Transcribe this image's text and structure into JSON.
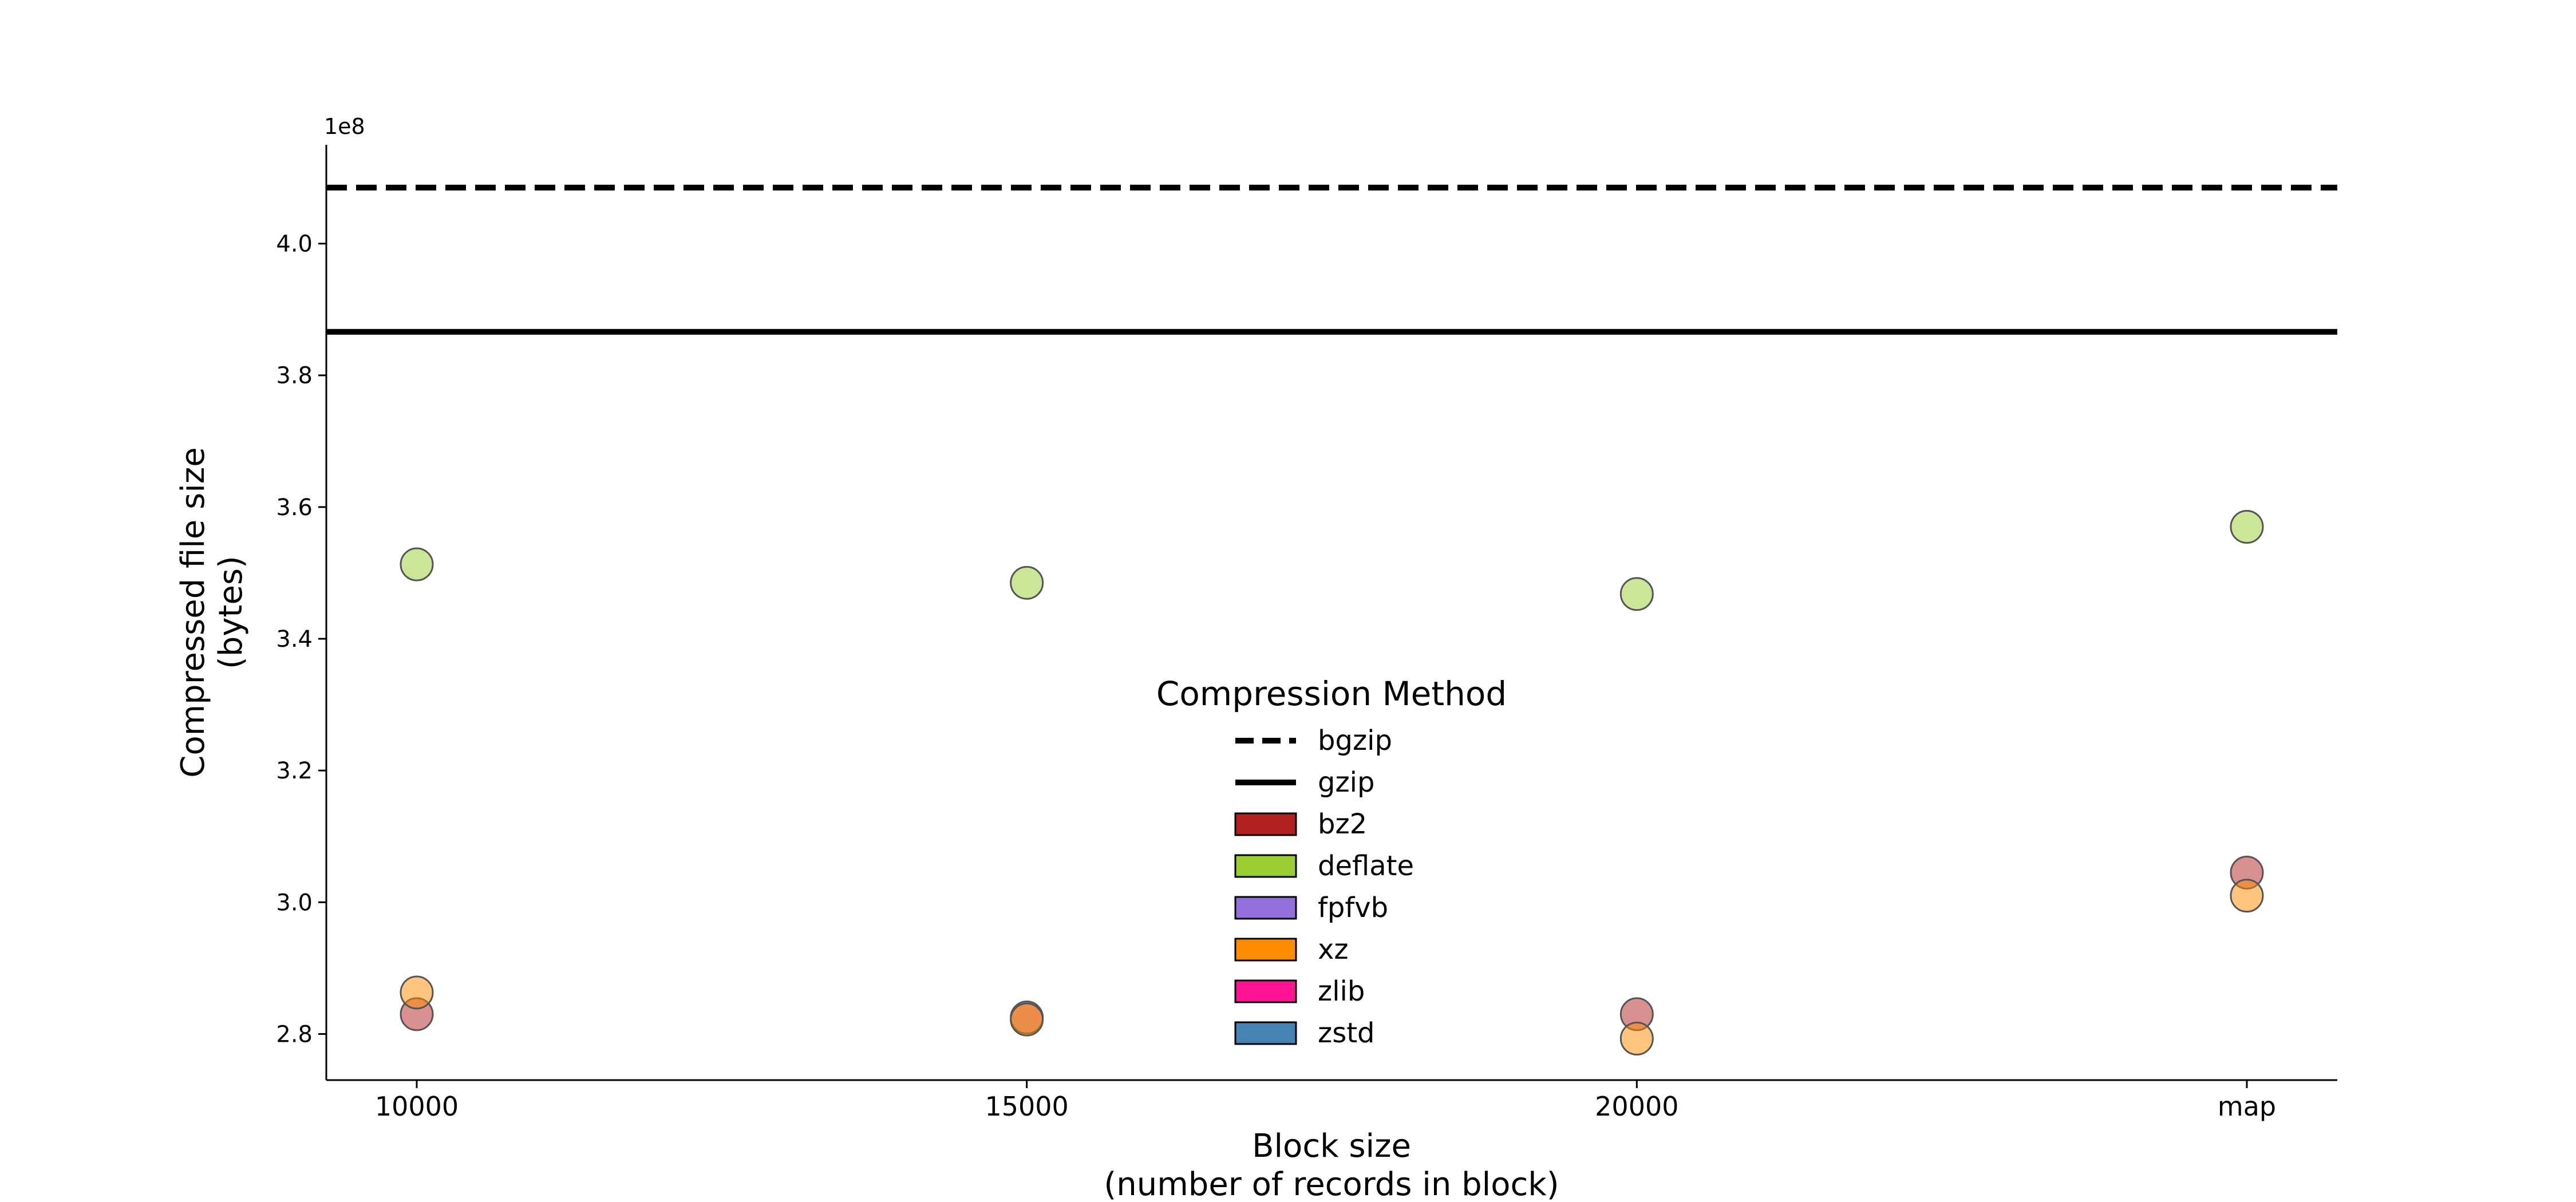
{
  "chart_data": {
    "type": "scatter",
    "xlabel": "Block size\n(number of records in block)",
    "ylabel": "Compressed file size\n(bytes)",
    "y_offset_label": "1e8",
    "y_multiplier": 100000000,
    "categories": [
      "10000",
      "15000",
      "20000",
      "map"
    ],
    "y_ticks": [
      2.8,
      3.0,
      3.2,
      3.4,
      3.6,
      3.8,
      4.0
    ],
    "y_tick_labels": [
      "2.8",
      "3.0",
      "3.2",
      "3.4",
      "3.6",
      "3.8",
      "4.0"
    ],
    "ylim": [
      2.73,
      4.15
    ],
    "grid": false,
    "reference_lines": [
      {
        "name": "bgzip",
        "value": 4.085,
        "style": "dashed"
      },
      {
        "name": "gzip",
        "value": 3.866,
        "style": "solid"
      }
    ],
    "series": [
      {
        "name": "bz2",
        "color": "#b22222",
        "values": [
          2.83,
          2.825,
          2.83,
          3.045
        ]
      },
      {
        "name": "deflate",
        "color": "#9acd32",
        "values": [
          3.513,
          3.485,
          3.468,
          3.57
        ]
      },
      {
        "name": "fpfvb",
        "color": "#9370db",
        "values": [
          null,
          null,
          null,
          null
        ]
      },
      {
        "name": "xz",
        "color": "#ff8c00",
        "values": [
          2.863,
          2.822,
          2.793,
          3.01
        ]
      },
      {
        "name": "zlib",
        "color": "#ff1493",
        "values": [
          null,
          null,
          null,
          null
        ]
      },
      {
        "name": "zstd",
        "color": "#4682b4",
        "values": [
          null,
          null,
          null,
          null
        ]
      }
    ],
    "legend": {
      "title": "Compression Method",
      "placement": "lower-center",
      "entries": [
        "bgzip",
        "gzip",
        "bz2",
        "deflate",
        "fpfvb",
        "xz",
        "zlib",
        "zstd"
      ]
    }
  }
}
